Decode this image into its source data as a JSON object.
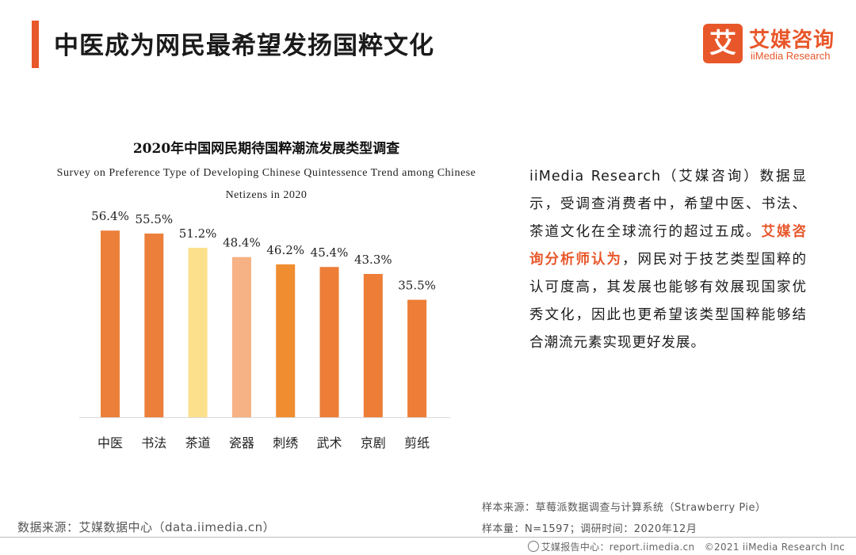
{
  "header": {
    "title": "中医成为网民最希望发扬国粹文化",
    "accent_color": "#e8572a"
  },
  "logo": {
    "mark": "艾",
    "cn": "艾媒咨询",
    "en": "iiMedia Research"
  },
  "chart_data": {
    "type": "bar",
    "title": "2020年中国网民期待国粹潮流发展类型调查",
    "subtitle": "Survey on Preference Type of Developing Chinese Quintessence Trend among Chinese Netizens in 2020",
    "categories": [
      "中医",
      "书法",
      "茶道",
      "瓷器",
      "刺绣",
      "武术",
      "京剧",
      "剪纸"
    ],
    "values": [
      56.4,
      55.5,
      51.2,
      48.4,
      46.2,
      45.4,
      43.3,
      35.5
    ],
    "value_labels": [
      "56.4%",
      "55.5%",
      "51.2%",
      "48.4%",
      "46.2%",
      "45.4%",
      "43.3%",
      "35.5%"
    ],
    "colors": [
      "#ec7f3a",
      "#ec7f3a",
      "#fde08c",
      "#f6b184",
      "#f08d30",
      "#ed7d37",
      "#ed7d37",
      "#ed7d37"
    ],
    "ylim": [
      0,
      65
    ],
    "grid": false,
    "legend": "none"
  },
  "description": {
    "part1": "iiMedia Research（艾媒咨询）数据显示，受调查消费者中，希望中医、书法、茶道文化在全球流行的超过五成。",
    "highlight": "艾媒咨询分析师认为",
    "part2": "，网民对于技艺类型国粹的认可度高，其发展也能够有效展现国家优秀文化，因此也更希望该类型国粹能够结合潮流元素实现更好发展。"
  },
  "sources": {
    "sample_source": "样本来源：草莓派数据调查与计算系统（Strawberry Pie）",
    "sample_size": "样本量：N=1597；调研时间：2020年12月",
    "data_source": "数据来源：艾媒数据中心（data.iimedia.cn）"
  },
  "footer": {
    "center": "艾媒报告中心：report.iimedia.cn",
    "copyright": "©2021  iiMedia Research  Inc"
  }
}
